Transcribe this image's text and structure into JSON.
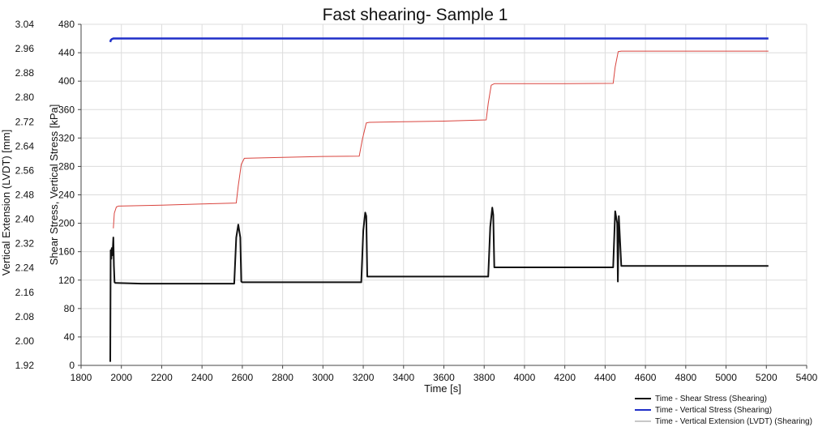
{
  "chart_data": {
    "type": "line",
    "title": "Fast shearing- Sample 1",
    "xlabel": "Time [s]",
    "ylabel": "Shear Stress, Vertical Stress [kPa]",
    "y2label": "Vertical Extension (LVDT) [mm]",
    "xlim": [
      1800,
      5400
    ],
    "ylim": [
      0,
      480
    ],
    "y2lim": [
      1.92,
      3.04
    ],
    "xticks": [
      1800,
      2000,
      2200,
      2400,
      2600,
      2800,
      3000,
      3200,
      3400,
      3600,
      3800,
      4000,
      4200,
      4400,
      4600,
      4800,
      5000,
      5200,
      5400
    ],
    "yticks": [
      0,
      40,
      80,
      120,
      160,
      200,
      240,
      280,
      320,
      360,
      400,
      440,
      480
    ],
    "y2ticks": [
      "1.92",
      "2.00",
      "2.08",
      "2.16",
      "2.24",
      "2.32",
      "2.40",
      "2.48",
      "2.56",
      "2.64",
      "2.72",
      "2.80",
      "2.88",
      "2.96",
      "3.04"
    ],
    "grid": true,
    "legend_position": "bottom-right",
    "series": [
      {
        "name": "Time - Shear Stress (Shearing)",
        "color": "#111111",
        "x": [
          1945,
          1947,
          1950,
          1952,
          1955,
          1958,
          1960,
          1963,
          1966,
          1970,
          1975,
          2100,
          2300,
          2560,
          2570,
          2580,
          2590,
          2595,
          2600,
          2800,
          3000,
          3190,
          3200,
          3210,
          3215,
          3220,
          3400,
          3600,
          3820,
          3830,
          3840,
          3845,
          3850,
          4000,
          4200,
          4440,
          4450,
          4460,
          4463,
          4468,
          4480,
          4700,
          4900,
          5100,
          5210
        ],
        "y": [
          5,
          162,
          150,
          165,
          155,
          168,
          180,
          140,
          117,
          116,
          116,
          115,
          115,
          115,
          180,
          198,
          180,
          118,
          117,
          117,
          117,
          117,
          190,
          215,
          210,
          125,
          125,
          125,
          125,
          195,
          222,
          212,
          138,
          138,
          138,
          138,
          217,
          200,
          118,
          210,
          140,
          140,
          140,
          140,
          140
        ]
      },
      {
        "name": "Time - Vertical Stress (Shearing)",
        "color": "#1f2fc8",
        "x": [
          1945,
          1948,
          1952,
          1960,
          1965,
          2200,
          2500,
          2800,
          3200,
          3600,
          4000,
          4400,
          4800,
          5210
        ],
        "y": [
          455,
          458,
          459,
          460,
          460,
          460,
          460,
          460,
          460,
          460,
          460,
          460,
          460,
          460
        ]
      },
      {
        "name": "Time - Vertical Extension (LVDT) (Shearing)",
        "color": "#d9443e",
        "x": [
          1960,
          1965,
          1975,
          1985,
          2200,
          2400,
          2570,
          2580,
          2595,
          2610,
          2800,
          3000,
          3180,
          3195,
          3215,
          3230,
          3400,
          3600,
          3810,
          3820,
          3835,
          3850,
          4000,
          4200,
          4440,
          4450,
          4465,
          4480,
          4700,
          4900,
          5210
        ],
        "y": [
          2.37,
          2.42,
          2.44,
          2.443,
          2.446,
          2.45,
          2.453,
          2.51,
          2.58,
          2.6,
          2.603,
          2.606,
          2.607,
          2.66,
          2.716,
          2.718,
          2.72,
          2.722,
          2.726,
          2.78,
          2.84,
          2.845,
          2.845,
          2.845,
          2.846,
          2.9,
          2.95,
          2.952,
          2.952,
          2.952,
          2.952
        ]
      }
    ]
  }
}
